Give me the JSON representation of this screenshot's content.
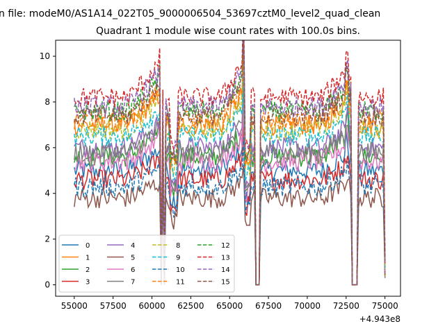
{
  "chart_data": {
    "type": "line",
    "suptitle": "n file: modeM0/AS1A14_022T05_9000006504_53697cztM0_level2_quad_clean",
    "title": "Quadrant 1 module wise count rates with 100.0s bins.",
    "xlabel": "",
    "ylabel": "",
    "x_offset_label": "+4.943e8",
    "xlim": [
      53800,
      76000
    ],
    "ylim": [
      -0.5,
      10.7
    ],
    "xticks": [
      55000,
      57500,
      60000,
      62500,
      65000,
      67500,
      70000,
      72500,
      75000
    ],
    "xtick_labels": [
      "55000",
      "57500",
      "60000",
      "62500",
      "65000",
      "67500",
      "70000",
      "72500",
      "75000"
    ],
    "yticks": [
      0,
      2,
      4,
      6,
      8,
      10
    ],
    "ytick_labels": [
      "0",
      "2",
      "4",
      "6",
      "8",
      "10"
    ],
    "x_start": 55000,
    "x_step": 100,
    "x_end": 75000,
    "gaps": [
      [
        60580,
        60650
      ],
      [
        60750,
        60850
      ],
      [
        66700,
        66950
      ],
      [
        72900,
        73250
      ]
    ],
    "legend": {
      "placement": "lower-left",
      "columns": 4
    },
    "series": [
      {
        "name": "0",
        "color": "#1f77b4",
        "dash": "solid",
        "base": 5.0
      },
      {
        "name": "1",
        "color": "#ff7f0e",
        "dash": "solid",
        "base": 7.0
      },
      {
        "name": "2",
        "color": "#2ca02c",
        "dash": "solid",
        "base": 5.6
      },
      {
        "name": "3",
        "color": "#d62728",
        "dash": "solid",
        "base": 4.6
      },
      {
        "name": "4",
        "color": "#9467bd",
        "dash": "solid",
        "base": 6.0
      },
      {
        "name": "5",
        "color": "#8c564b",
        "dash": "solid",
        "base": 3.8
      },
      {
        "name": "6",
        "color": "#e377c2",
        "dash": "solid",
        "base": 5.4
      },
      {
        "name": "7",
        "color": "#7f7f7f",
        "dash": "solid",
        "base": 5.8
      },
      {
        "name": "8",
        "color": "#bcbd22",
        "dash": "dashed",
        "base": 6.8
      },
      {
        "name": "9",
        "color": "#17becf",
        "dash": "dashed",
        "base": 6.5
      },
      {
        "name": "10",
        "color": "#1f77b4",
        "dash": "dashed",
        "base": 4.3
      },
      {
        "name": "11",
        "color": "#ff7f0e",
        "dash": "dashed",
        "base": 7.2
      },
      {
        "name": "12",
        "color": "#2ca02c",
        "dash": "dashed",
        "base": 7.6
      },
      {
        "name": "13",
        "color": "#d62728",
        "dash": "dashed",
        "base": 8.2
      },
      {
        "name": "14",
        "color": "#9467bd",
        "dash": "dashed",
        "base": 7.8
      },
      {
        "name": "15",
        "color": "#8c564b",
        "dash": "dashed",
        "base": 7.4
      }
    ]
  }
}
